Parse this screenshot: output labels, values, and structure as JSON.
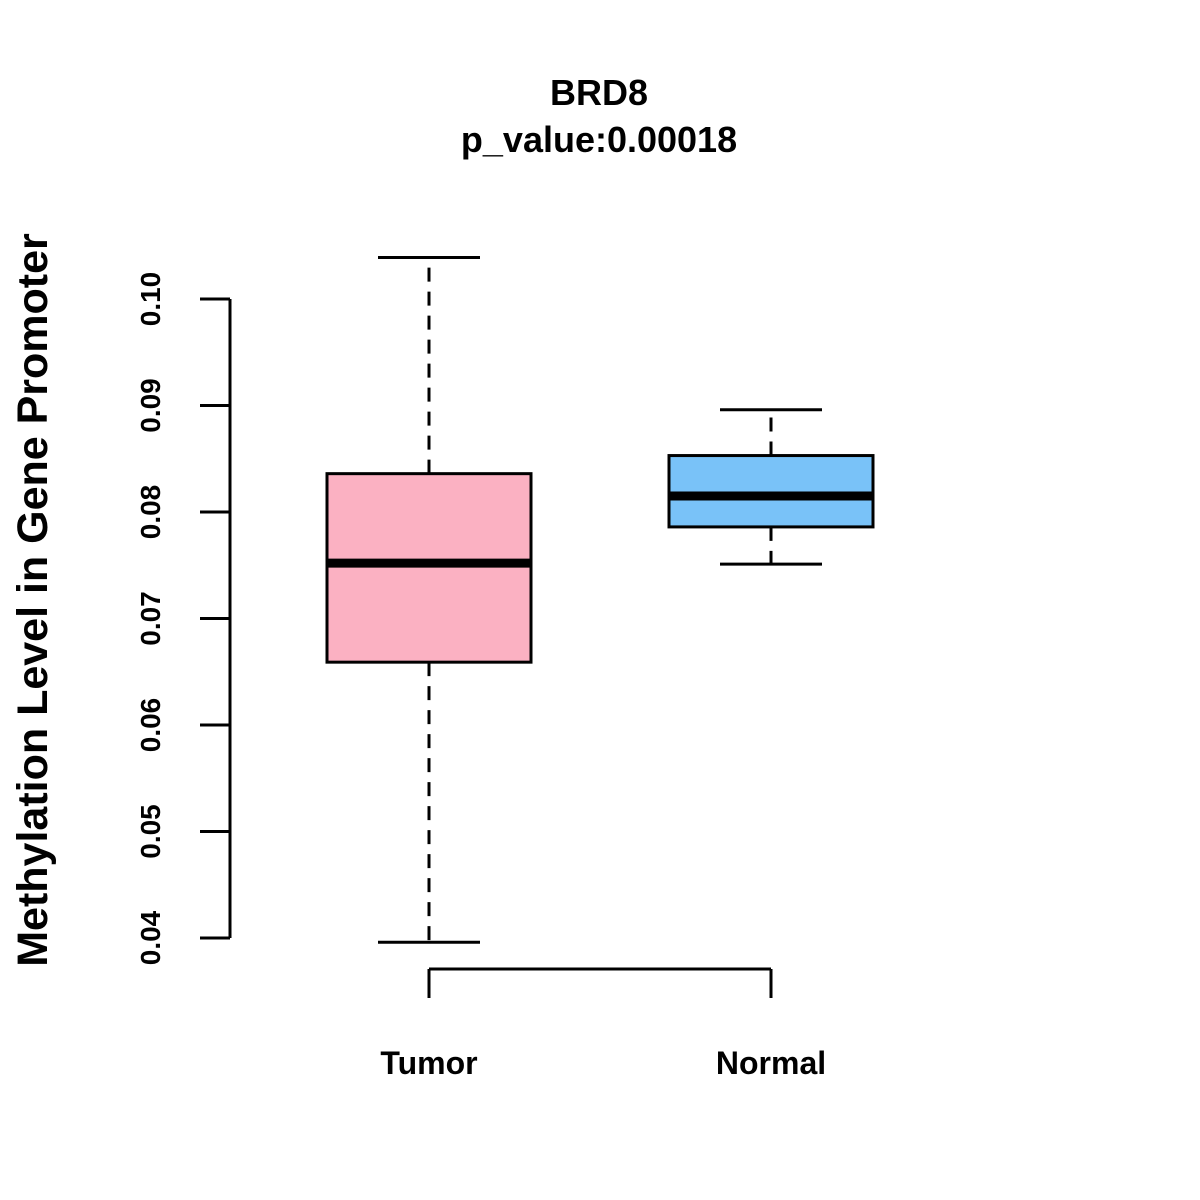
{
  "chart_data": {
    "type": "boxplot",
    "title": "BRD8",
    "subtitle": "p_value:0.00018",
    "xlabel": "",
    "ylabel": "Methylation Level in Gene Promoter",
    "ylim": [
      0.04,
      0.1
    ],
    "yticks": [
      0.04,
      0.05,
      0.06,
      0.07,
      0.08,
      0.09,
      0.1
    ],
    "ytick_labels": [
      "0.04",
      "0.05",
      "0.06",
      "0.07",
      "0.08",
      "0.09",
      "0.10"
    ],
    "categories": [
      "Tumor",
      "Normal"
    ],
    "boxes": [
      {
        "name": "Tumor",
        "min": 0.0396,
        "q1": 0.0659,
        "median": 0.0752,
        "q3": 0.0836,
        "max": 0.1039,
        "color": "#FBB1C2"
      },
      {
        "name": "Normal",
        "min": 0.0751,
        "q1": 0.0786,
        "median": 0.0815,
        "q3": 0.0853,
        "max": 0.0896,
        "color": "#79C2F8"
      }
    ],
    "grid": false
  }
}
